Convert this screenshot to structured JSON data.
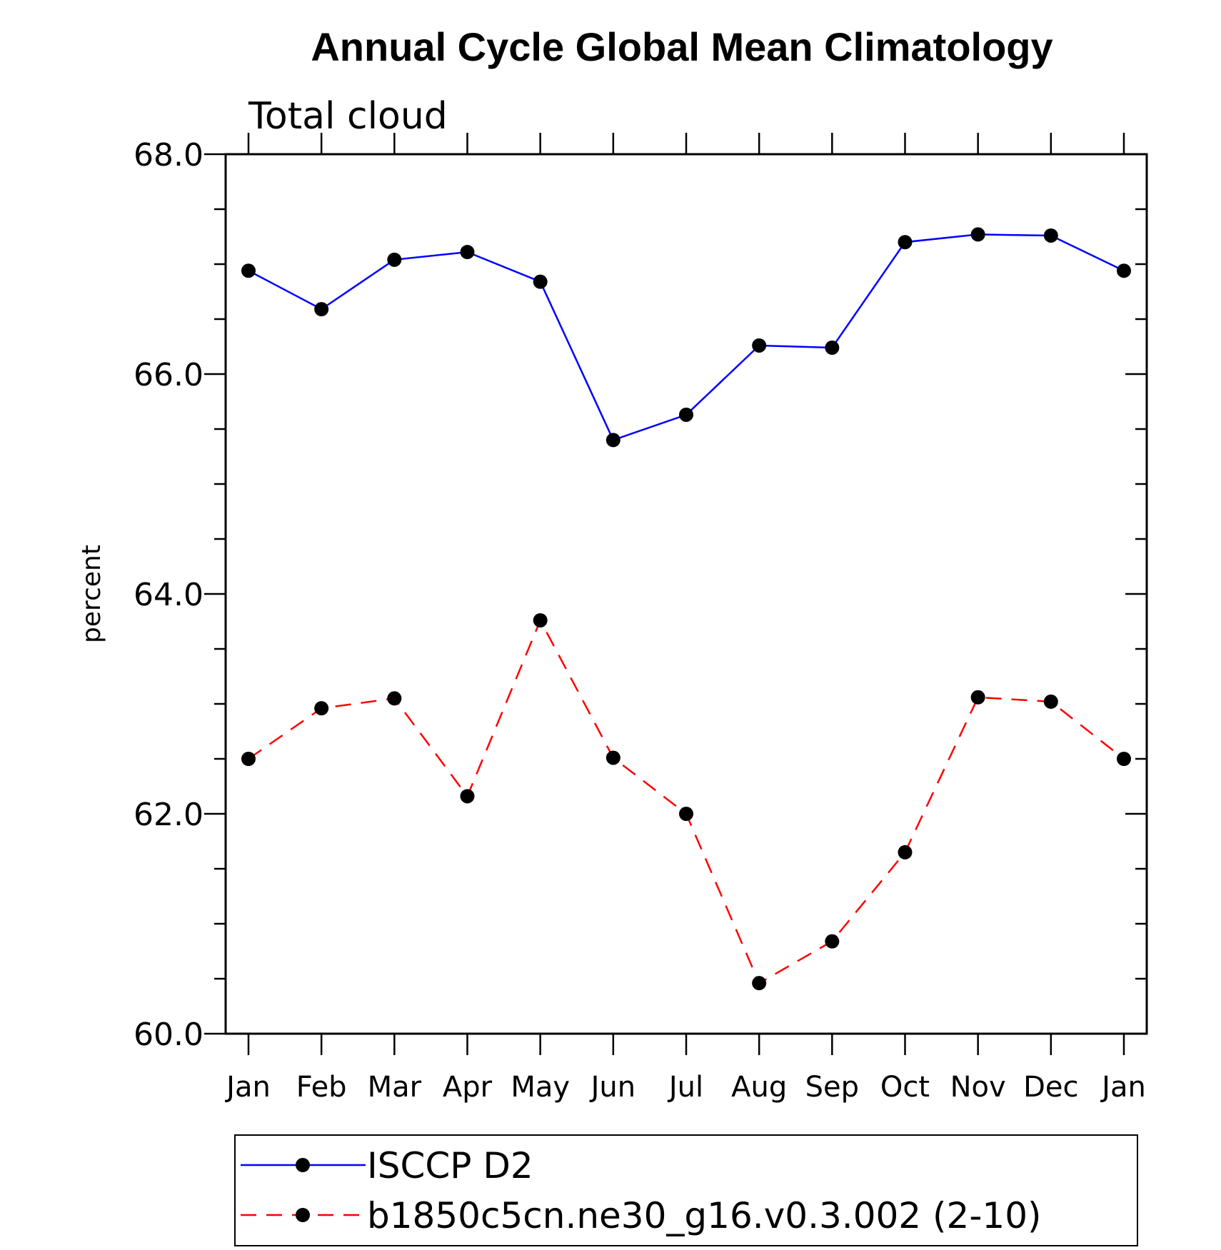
{
  "chart_data": {
    "type": "line",
    "title": "Annual Cycle Global Mean Climatology",
    "subtitle": "Total cloud",
    "ylabel": "percent",
    "xlabel": "",
    "categories": [
      "Jan",
      "Feb",
      "Mar",
      "Apr",
      "May",
      "Jun",
      "Jul",
      "Aug",
      "Sep",
      "Oct",
      "Nov",
      "Dec",
      "Jan"
    ],
    "ylim": [
      60.0,
      68.0
    ],
    "yticks": [
      "60.0",
      "62.0",
      "64.0",
      "66.0",
      "68.0"
    ],
    "yminor_step": 0.5,
    "grid": false,
    "legend_position": "bottom",
    "series": [
      {
        "name": "ISCCP D2",
        "color": "#0000ff",
        "style": "solid",
        "marker": "filled-circle",
        "values": [
          66.94,
          66.59,
          67.04,
          67.11,
          66.84,
          65.4,
          65.63,
          66.26,
          66.24,
          67.2,
          67.27,
          67.26,
          66.94
        ]
      },
      {
        "name": "b1850c5cn.ne30_g16.v0.3.002 (2-10)",
        "color": "#ff0000",
        "style": "dashed",
        "marker": "filled-circle",
        "values": [
          62.5,
          62.96,
          63.05,
          62.16,
          63.76,
          62.51,
          62.0,
          60.46,
          60.84,
          61.65,
          63.06,
          63.02,
          62.5
        ]
      }
    ]
  }
}
